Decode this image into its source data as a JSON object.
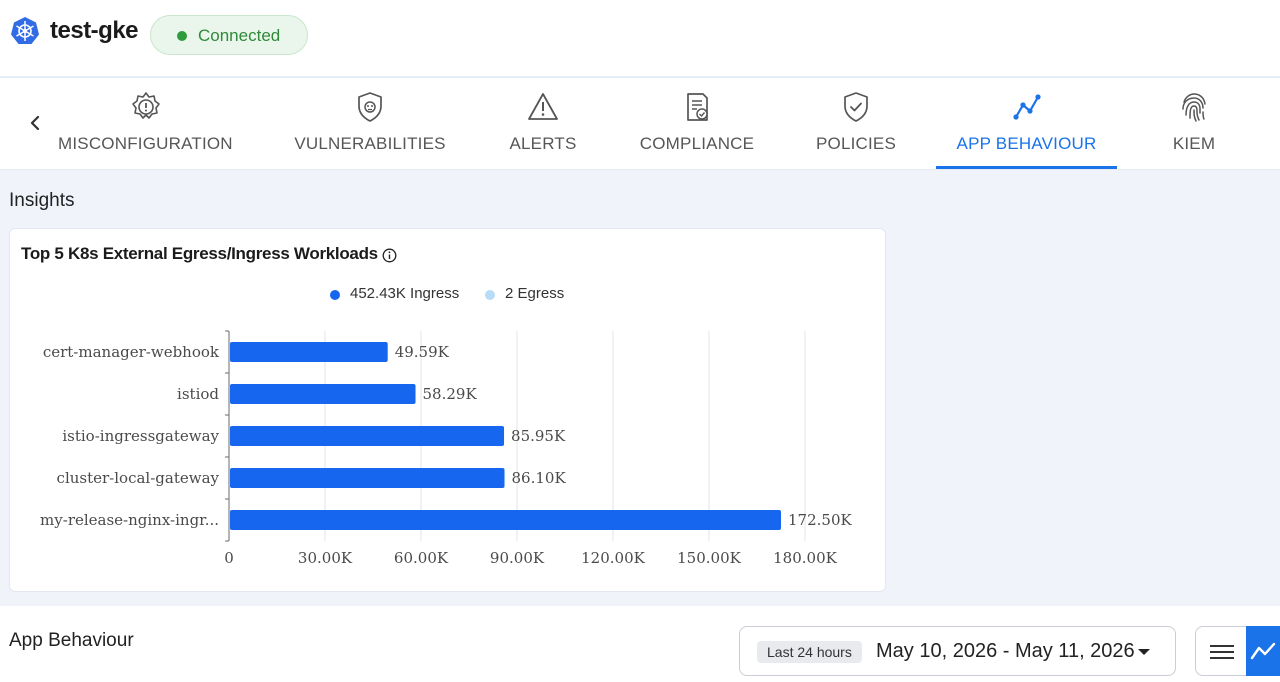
{
  "header": {
    "cluster_name": "test-gke",
    "status": "Connected",
    "status_color": "#2e9b3c"
  },
  "tabs": [
    {
      "label": "MISCONFIGURATION",
      "icon": "gear-warning-icon",
      "active": false
    },
    {
      "label": "VULNERABILITIES",
      "icon": "shield-bug-icon",
      "active": false
    },
    {
      "label": "ALERTS",
      "icon": "warning-triangle-icon",
      "active": false
    },
    {
      "label": "COMPLIANCE",
      "icon": "document-check-icon",
      "active": false
    },
    {
      "label": "POLICIES",
      "icon": "shield-check-icon",
      "active": false
    },
    {
      "label": "APP BEHAVIOUR",
      "icon": "graph-line-icon",
      "active": true
    },
    {
      "label": "KIEM",
      "icon": "fingerprint-icon",
      "active": false
    }
  ],
  "insights": {
    "title": "Insights",
    "card_title": "Top 5 K8s External Egress/Ingress Workloads"
  },
  "chart_data": {
    "type": "bar",
    "orientation": "horizontal",
    "title": "Top 5 K8s External Egress/Ingress Workloads",
    "categories": [
      "cert-manager-webhook",
      "istiod",
      "istio-ingressgateway",
      "cluster-local-gateway",
      "my-release-nginx-ingr..."
    ],
    "series": [
      {
        "name": "452.43K Ingress",
        "color": "#1766f0",
        "values": [
          49590,
          58290,
          85950,
          86100,
          172500
        ]
      },
      {
        "name": "2 Egress",
        "color": "#b8dcf7",
        "values": [
          0,
          0,
          0,
          0,
          0
        ]
      }
    ],
    "data_labels": [
      "49.59K",
      "58.29K",
      "85.95K",
      "86.10K",
      "172.50K"
    ],
    "x_ticks": [
      0,
      30000,
      60000,
      90000,
      120000,
      150000,
      180000
    ],
    "x_tick_labels": [
      "0",
      "30.00K",
      "60.00K",
      "90.00K",
      "120.00K",
      "150.00K",
      "180.00K"
    ],
    "xlim": [
      0,
      180000
    ],
    "grid": true,
    "legend_position": "top"
  },
  "app_behaviour": {
    "title": "App Behaviour",
    "range_chip": "Last 24 hours",
    "date_range": "May 10, 2026 - May 11, 2026"
  }
}
